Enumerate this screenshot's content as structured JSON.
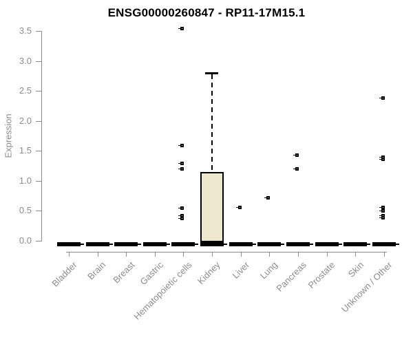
{
  "chart_data": {
    "type": "boxplot",
    "title": "ENSG00000260847 - RP11-17M15.1",
    "xlabel": "",
    "ylabel": "Expression",
    "ylim": [
      0,
      3.5
    ],
    "y_ticks": [
      0,
      0.5,
      1,
      1.5,
      2,
      2.5,
      3,
      3.5
    ],
    "y_tick_labels": [
      "0.0",
      "0.5",
      "1.0",
      "1.5",
      "2.0",
      "2.5",
      "3.0",
      "3.5"
    ],
    "categories": [
      "Bladder",
      "Brain",
      "Breast",
      "Gastric",
      "Hematopoietic cells",
      "Kidney",
      "Liver",
      "Lung",
      "Pancreas",
      "Prostate",
      "Skin",
      "Unknown / Other"
    ],
    "grid": false,
    "legend": "none",
    "boxes": [
      {
        "category": "Bladder",
        "whisker_low": 0,
        "q1": 0,
        "median": 0,
        "q3": 0,
        "whisker_high": 0,
        "outliers": []
      },
      {
        "category": "Brain",
        "whisker_low": 0,
        "q1": 0,
        "median": 0,
        "q3": 0,
        "whisker_high": 0,
        "outliers": []
      },
      {
        "category": "Breast",
        "whisker_low": 0,
        "q1": 0,
        "median": 0,
        "q3": 0,
        "whisker_high": 0,
        "outliers": []
      },
      {
        "category": "Gastric",
        "whisker_low": 0,
        "q1": 0,
        "median": 0,
        "q3": 0,
        "whisker_high": 0,
        "outliers": []
      },
      {
        "category": "Hematopoietic cells",
        "whisker_low": 0,
        "q1": 0,
        "median": 0,
        "q3": 0,
        "whisker_high": 0,
        "outliers": [
          3.55,
          1.6,
          1.3,
          1.2,
          0.55,
          0.42,
          0.38
        ]
      },
      {
        "category": "Kidney",
        "whisker_low": 0,
        "q1": 0,
        "median": 0,
        "q3": 1.15,
        "whisker_high": 2.8,
        "outliers": []
      },
      {
        "category": "Liver",
        "whisker_low": 0,
        "q1": 0,
        "median": 0,
        "q3": 0,
        "whisker_high": 0,
        "outliers": [
          0.56
        ]
      },
      {
        "category": "Lung",
        "whisker_low": 0,
        "q1": 0,
        "median": 0,
        "q3": 0,
        "whisker_high": 0,
        "outliers": [
          0.72
        ]
      },
      {
        "category": "Pancreas",
        "whisker_low": 0,
        "q1": 0,
        "median": 0,
        "q3": 0,
        "whisker_high": 0,
        "outliers": [
          1.43,
          1.2
        ]
      },
      {
        "category": "Prostate",
        "whisker_low": 0,
        "q1": 0,
        "median": 0,
        "q3": 0,
        "whisker_high": 0,
        "outliers": []
      },
      {
        "category": "Skin",
        "whisker_low": 0,
        "q1": 0,
        "median": 0,
        "q3": 0,
        "whisker_high": 0,
        "outliers": []
      },
      {
        "category": "Unknown / Other",
        "whisker_low": 0,
        "q1": 0,
        "median": 0,
        "q3": 0,
        "whisker_high": 0,
        "outliers": [
          2.39,
          1.4,
          1.37,
          0.56,
          0.51,
          0.43,
          0.39
        ]
      }
    ],
    "style": {
      "background": "#FFFFFF",
      "box_fill": "#EDE8CE",
      "box_border": "#000000",
      "median_color": "#000000",
      "outlier_color": "#000000",
      "axis_color": "#8B8B8B",
      "tick_text_color": "#8B8B8B",
      "title_color": "#000000"
    }
  }
}
